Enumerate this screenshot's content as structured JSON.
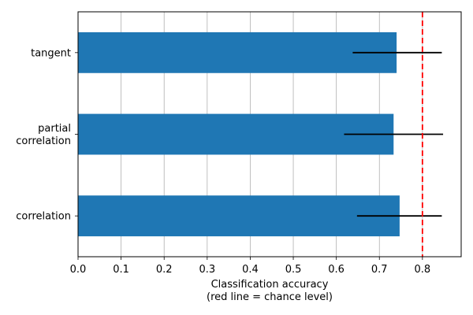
{
  "chart_data": {
    "type": "bar",
    "orientation": "horizontal",
    "categories": [
      "correlation",
      "partial\ncorrelation",
      "tangent"
    ],
    "values": [
      0.747,
      0.733,
      0.74
    ],
    "error_low": [
      0.648,
      0.618,
      0.638
    ],
    "error_high": [
      0.845,
      0.848,
      0.845
    ],
    "xlabel": "Classification accuracy\n(red line = chance level)",
    "ylabel": "",
    "xlim": [
      0,
      0.89
    ],
    "xticks": [
      "0.0",
      "0.1",
      "0.2",
      "0.3",
      "0.4",
      "0.5",
      "0.6",
      "0.7",
      "0.8"
    ],
    "grid": "vertical",
    "reference_line": {
      "value": 0.8,
      "color": "#ff0000",
      "style": "dashed"
    },
    "bar_color": "#1f77b4",
    "error_color": "#000000"
  }
}
